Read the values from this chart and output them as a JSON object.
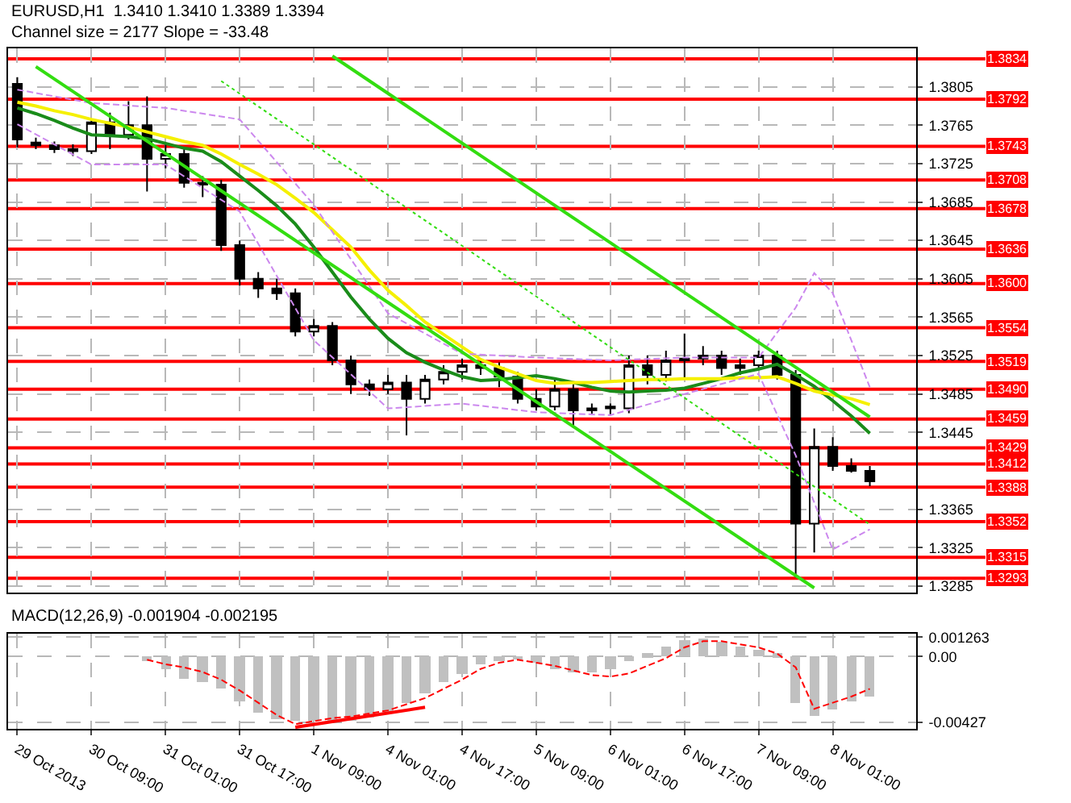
{
  "chart_data": [
    {
      "type": "candlestick",
      "title": "EURUSD,H1  1.3410 1.3410 1.3389 1.3394",
      "annotations": [
        "Channel size = 2177 Slope = -33.48"
      ],
      "categories": [
        null,
        null,
        null,
        null,
        null,
        null,
        null,
        null,
        null,
        null,
        null,
        null,
        null,
        null,
        null,
        null,
        null,
        null,
        null,
        null,
        null,
        null,
        null,
        null,
        null,
        null,
        null,
        null,
        null,
        null,
        null,
        null,
        null,
        null,
        null,
        null,
        null,
        null,
        null,
        null,
        null,
        null,
        null,
        null,
        null,
        null,
        null
      ],
      "ohlc": [
        [
          1.3808,
          1.3815,
          1.3742,
          1.375
        ],
        [
          1.3747,
          1.3752,
          1.374,
          1.3744
        ],
        [
          1.3744,
          1.3748,
          1.3736,
          1.374
        ],
        [
          1.374,
          1.3745,
          1.3733,
          1.3738
        ],
        [
          1.3738,
          1.3772,
          1.3735,
          1.3768
        ],
        [
          1.3768,
          1.3778,
          1.374,
          1.3755
        ],
        [
          1.3755,
          1.379,
          1.375,
          1.3765
        ],
        [
          1.3765,
          1.3795,
          1.3696,
          1.373
        ],
        [
          1.373,
          1.3745,
          1.372,
          1.3735
        ],
        [
          1.3735,
          1.374,
          1.37,
          1.3705
        ],
        [
          1.3705,
          1.3712,
          1.369,
          1.3703
        ],
        [
          1.3703,
          1.3708,
          1.3634,
          1.364
        ],
        [
          1.364,
          1.3645,
          1.3598,
          1.3605
        ],
        [
          1.3605,
          1.3612,
          1.3585,
          1.3595
        ],
        [
          1.3595,
          1.3605,
          1.3583,
          1.359
        ],
        [
          1.359,
          1.3595,
          1.3545,
          1.355
        ],
        [
          1.355,
          1.3563,
          1.3545,
          1.3556
        ],
        [
          1.3556,
          1.356,
          1.3515,
          1.352
        ],
        [
          1.352,
          1.3525,
          1.3485,
          1.3495
        ],
        [
          1.3495,
          1.35,
          1.3483,
          1.349
        ],
        [
          1.349,
          1.3505,
          1.3485,
          1.3497
        ],
        [
          1.3497,
          1.3505,
          1.3442,
          1.348
        ],
        [
          1.348,
          1.3505,
          1.3475,
          1.35
        ],
        [
          1.35,
          1.3515,
          1.3495,
          1.3508
        ],
        [
          1.3508,
          1.3522,
          1.35,
          1.3515
        ],
        [
          1.3515,
          1.3522,
          1.3505,
          1.3512
        ],
        [
          1.3512,
          1.3518,
          1.3492,
          1.3503
        ],
        [
          1.3503,
          1.3508,
          1.3475,
          1.348
        ],
        [
          1.348,
          1.349,
          1.3468,
          1.3472
        ],
        [
          1.3472,
          1.35,
          1.3468,
          1.349
        ],
        [
          1.349,
          1.3495,
          1.345,
          1.3468
        ],
        [
          1.3468,
          1.3475,
          1.3463,
          1.347
        ],
        [
          1.347,
          1.3475,
          1.3464,
          1.3472
        ],
        [
          1.347,
          1.3525,
          1.3465,
          1.3515
        ],
        [
          1.3515,
          1.3525,
          1.3495,
          1.3505
        ],
        [
          1.3505,
          1.353,
          1.3498,
          1.352
        ],
        [
          1.352,
          1.3548,
          1.35,
          1.3522
        ],
        [
          1.3522,
          1.3535,
          1.3515,
          1.3525
        ],
        [
          1.3525,
          1.353,
          1.3505,
          1.3512
        ],
        [
          1.3512,
          1.3522,
          1.3505,
          1.3515
        ],
        [
          1.3515,
          1.353,
          1.3512,
          1.3525
        ],
        [
          1.3525,
          1.353,
          1.35,
          1.3505
        ],
        [
          1.3505,
          1.351,
          1.3294,
          1.335
        ],
        [
          1.335,
          1.3449,
          1.332,
          1.343
        ],
        [
          1.343,
          1.344,
          1.3405,
          1.341
        ],
        [
          1.341,
          1.3418,
          1.3403,
          1.3405
        ],
        [
          1.3405,
          1.341,
          1.3389,
          1.3394
        ]
      ],
      "series": [
        {
          "type": "line",
          "color": "#1a8c1a",
          "values": [
            1.3783,
            1.3777,
            1.377,
            1.3762,
            1.3755,
            1.3754,
            1.3753,
            1.3751,
            1.3746,
            1.3741,
            1.3738,
            1.3727,
            1.3712,
            1.3697,
            1.3681,
            1.3662,
            1.3638,
            1.3612,
            1.3586,
            1.3563,
            1.3543,
            1.3528,
            1.3518,
            1.351,
            1.3503,
            1.3499,
            1.35,
            1.3502,
            1.3504,
            1.3501,
            1.3497,
            1.3492,
            1.3488,
            1.3487,
            1.3488,
            1.3489,
            1.3491,
            1.3496,
            1.3501,
            1.3507,
            1.3511,
            1.3516,
            1.3505,
            1.3493,
            1.3478,
            1.3462,
            1.3444
          ]
        },
        {
          "type": "line",
          "color": "#f5f000",
          "values": [
            1.3789,
            1.3785,
            1.378,
            1.3776,
            1.3771,
            1.3767,
            1.3763,
            1.3758,
            1.3753,
            1.3748,
            1.3744,
            1.3735,
            1.3724,
            1.3714,
            1.3703,
            1.3689,
            1.3674,
            1.3656,
            1.3638,
            1.3614,
            1.3593,
            1.3577,
            1.356,
            1.3547,
            1.3534,
            1.3521,
            1.3513,
            1.3506,
            1.3499,
            1.3496,
            1.3497,
            1.3497,
            1.3498,
            1.3499,
            1.35,
            1.35,
            1.3501,
            1.3501,
            1.3501,
            1.3502,
            1.3502,
            1.3503,
            1.3496,
            1.3488,
            1.3484,
            1.348,
            1.3474
          ]
        },
        {
          "type": "line",
          "color": "#cc88ee",
          "line_style": "dashed",
          "values": [
            1.3802,
            null,
            null,
            null,
            1.3788,
            null,
            null,
            null,
            1.3783,
            null,
            null,
            null,
            1.3771,
            null,
            null,
            null,
            1.3682,
            null,
            null,
            null,
            1.3569,
            null,
            null,
            null,
            1.3527,
            null,
            null,
            null,
            1.3523,
            null,
            null,
            null,
            1.352,
            null,
            null,
            null,
            1.3523,
            null,
            null,
            null,
            1.3523,
            null,
            1.3575,
            1.3611,
            1.359,
            null,
            1.3492
          ]
        },
        {
          "type": "line",
          "color": "#cc88ee",
          "line_style": "dashed",
          "values": [
            1.3766,
            null,
            null,
            null,
            1.3724,
            null,
            null,
            null,
            1.3724,
            null,
            null,
            null,
            1.3675,
            null,
            null,
            null,
            1.3541,
            null,
            null,
            null,
            1.347,
            null,
            null,
            null,
            1.3475,
            null,
            null,
            null,
            1.3466,
            null,
            null,
            null,
            1.3463,
            null,
            null,
            null,
            1.3485,
            null,
            null,
            null,
            1.3506,
            null,
            1.3421,
            null,
            1.3323,
            null,
            1.3344
          ]
        },
        {
          "type": "line",
          "color": "#33dd11",
          "values": [
            null,
            null,
            null,
            null,
            null,
            null,
            null,
            null,
            null,
            null,
            null,
            null,
            null,
            null,
            null,
            null,
            null,
            1.3837,
            null,
            null,
            null,
            null,
            null,
            null,
            null,
            null,
            null,
            null,
            null,
            null,
            null,
            null,
            null,
            null,
            null,
            null,
            null,
            null,
            null,
            null,
            null,
            null,
            null,
            null,
            null,
            null,
            1.3461
          ]
        },
        {
          "type": "line",
          "color": "#33dd11",
          "values": [
            null,
            1.3826,
            null,
            null,
            null,
            null,
            null,
            null,
            null,
            null,
            null,
            null,
            null,
            null,
            null,
            null,
            null,
            null,
            null,
            null,
            null,
            null,
            null,
            null,
            null,
            null,
            null,
            null,
            null,
            null,
            null,
            null,
            null,
            null,
            null,
            null,
            null,
            null,
            null,
            null,
            null,
            null,
            null,
            1.3283,
            null,
            null,
            null
          ]
        },
        {
          "type": "line",
          "color": "#33dd11",
          "line_style": "dotted",
          "values": [
            null,
            null,
            null,
            null,
            null,
            null,
            null,
            null,
            null,
            null,
            null,
            1.3811,
            null,
            null,
            null,
            null,
            null,
            null,
            null,
            null,
            null,
            null,
            null,
            null,
            null,
            null,
            null,
            null,
            null,
            null,
            null,
            null,
            null,
            null,
            null,
            null,
            null,
            null,
            null,
            null,
            null,
            null,
            null,
            null,
            null,
            null,
            1.3349
          ]
        }
      ],
      "ylim": [
        1.3278,
        1.3845
      ],
      "yticks": [
        1.3805,
        1.3765,
        1.3725,
        1.3685,
        1.3645,
        1.3605,
        1.3565,
        1.3525,
        1.3485,
        1.3445,
        1.3365,
        1.3325,
        1.3285
      ],
      "ref_lines": [
        {
          "axis": "y",
          "value": 1.3834,
          "label": "1.3834",
          "color": "#ff0000"
        },
        {
          "axis": "y",
          "value": 1.3792,
          "label": "1.3792",
          "color": "#ff0000"
        },
        {
          "axis": "y",
          "value": 1.3743,
          "label": "1.3743",
          "color": "#ff0000"
        },
        {
          "axis": "y",
          "value": 1.3708,
          "label": "1.3708",
          "color": "#ff0000"
        },
        {
          "axis": "y",
          "value": 1.3678,
          "label": "1.3678",
          "color": "#ff0000"
        },
        {
          "axis": "y",
          "value": 1.3636,
          "label": "1.3636",
          "color": "#ff0000"
        },
        {
          "axis": "y",
          "value": 1.36,
          "label": "1.3600",
          "color": "#ff0000"
        },
        {
          "axis": "y",
          "value": 1.3554,
          "label": "1.3554",
          "color": "#ff0000"
        },
        {
          "axis": "y",
          "value": 1.3519,
          "label": "1.3519",
          "color": "#ff0000"
        },
        {
          "axis": "y",
          "value": 1.349,
          "label": "1.3490",
          "color": "#ff0000"
        },
        {
          "axis": "y",
          "value": 1.3459,
          "label": "1.3459",
          "color": "#ff0000"
        },
        {
          "axis": "y",
          "value": 1.3429,
          "label": "1.3429",
          "color": "#ff0000"
        },
        {
          "axis": "y",
          "value": 1.3412,
          "label": "1.3412",
          "color": "#ff0000"
        },
        {
          "axis": "y",
          "value": 1.3388,
          "label": "1.3388",
          "color": "#ff0000"
        },
        {
          "axis": "y",
          "value": 1.3352,
          "label": "1.3352",
          "color": "#ff0000"
        },
        {
          "axis": "y",
          "value": 1.3315,
          "label": "1.3315",
          "color": "#ff0000"
        },
        {
          "axis": "y",
          "value": 1.3293,
          "label": "1.3293",
          "color": "#ff0000"
        }
      ],
      "grid": true,
      "tick_labels": "y"
    },
    {
      "type": "bar",
      "title": "MACD(12,26,9) -0.001904 -0.002195",
      "categories": [
        "29 Oct 2013",
        null,
        null,
        null,
        "30 Oct 09:00",
        null,
        null,
        null,
        "31 Oct 01:00",
        null,
        null,
        null,
        "31 Oct 17:00",
        null,
        null,
        null,
        "1 Nov 09:00",
        null,
        null,
        null,
        "4 Nov 01:00",
        null,
        null,
        null,
        "4 Nov 17:00",
        null,
        null,
        null,
        "5 Nov 09:00",
        null,
        null,
        null,
        "6 Nov 01:00",
        null,
        null,
        null,
        "6 Nov 17:00",
        null,
        null,
        null,
        "7 Nov 09:00",
        null,
        null,
        null,
        "8 Nov 01:00",
        null,
        null
      ],
      "series": [
        {
          "type": "bar",
          "color": "#c0c0c0",
          "values": [
            null,
            null,
            null,
            null,
            null,
            null,
            null,
            -0.0003,
            -0.0008,
            -0.0014,
            -0.0016,
            -0.0021,
            -0.0029,
            -0.0036,
            -0.0041,
            -0.0042,
            -0.0042,
            -0.0042,
            -0.0042,
            -0.004,
            -0.0036,
            -0.003,
            -0.0024,
            -0.0017,
            -0.0011,
            -0.0005,
            -0.0003,
            -0.0002,
            -0.0004,
            -0.0008,
            -0.001,
            -0.001,
            -0.0008,
            -0.0003,
            0.0002,
            0.0007,
            0.0011,
            0.0012,
            0.001,
            0.0007,
            0.0005,
            0.0002,
            -0.003,
            -0.0039,
            -0.0034,
            -0.0029,
            -0.0026
          ]
        },
        {
          "type": "line",
          "color": "#ff0000",
          "line_style": "dashed",
          "values": [
            null,
            null,
            null,
            null,
            null,
            null,
            null,
            -0.0002,
            -0.0005,
            -0.0007,
            -0.001,
            -0.0015,
            -0.0022,
            -0.003,
            -0.0038,
            -0.0044,
            -0.0042,
            -0.004,
            -0.0039,
            -0.0037,
            -0.0035,
            -0.0031,
            -0.0027,
            -0.0021,
            -0.0015,
            -0.0008,
            -0.0004,
            -0.0002,
            -0.0004,
            -0.0006,
            -0.0009,
            -0.0012,
            -0.0013,
            -0.0011,
            -0.0006,
            -0.0001,
            0.0006,
            0.001,
            0.001,
            0.0008,
            0.0006,
            0.0002,
            -0.0007,
            -0.0034,
            -0.003,
            -0.0026,
            -0.0021
          ]
        },
        {
          "type": "line",
          "color": "#ff0000",
          "values": [
            null,
            null,
            null,
            null,
            null,
            null,
            null,
            null,
            null,
            null,
            null,
            null,
            null,
            null,
            null,
            -0.0046,
            null,
            null,
            null,
            null,
            null,
            null,
            -0.0033,
            null,
            null,
            null,
            null,
            null,
            null,
            null,
            null,
            null,
            null,
            null,
            null,
            null,
            null,
            null,
            null,
            null,
            null,
            null,
            null,
            null,
            null,
            null,
            null
          ]
        }
      ],
      "ylim": [
        -0.0047,
        0.0015
      ],
      "yticks": [
        0.001263,
        {
          "value": 0,
          "label": "0.00"
        },
        -0.00427
      ],
      "grid": true
    }
  ]
}
